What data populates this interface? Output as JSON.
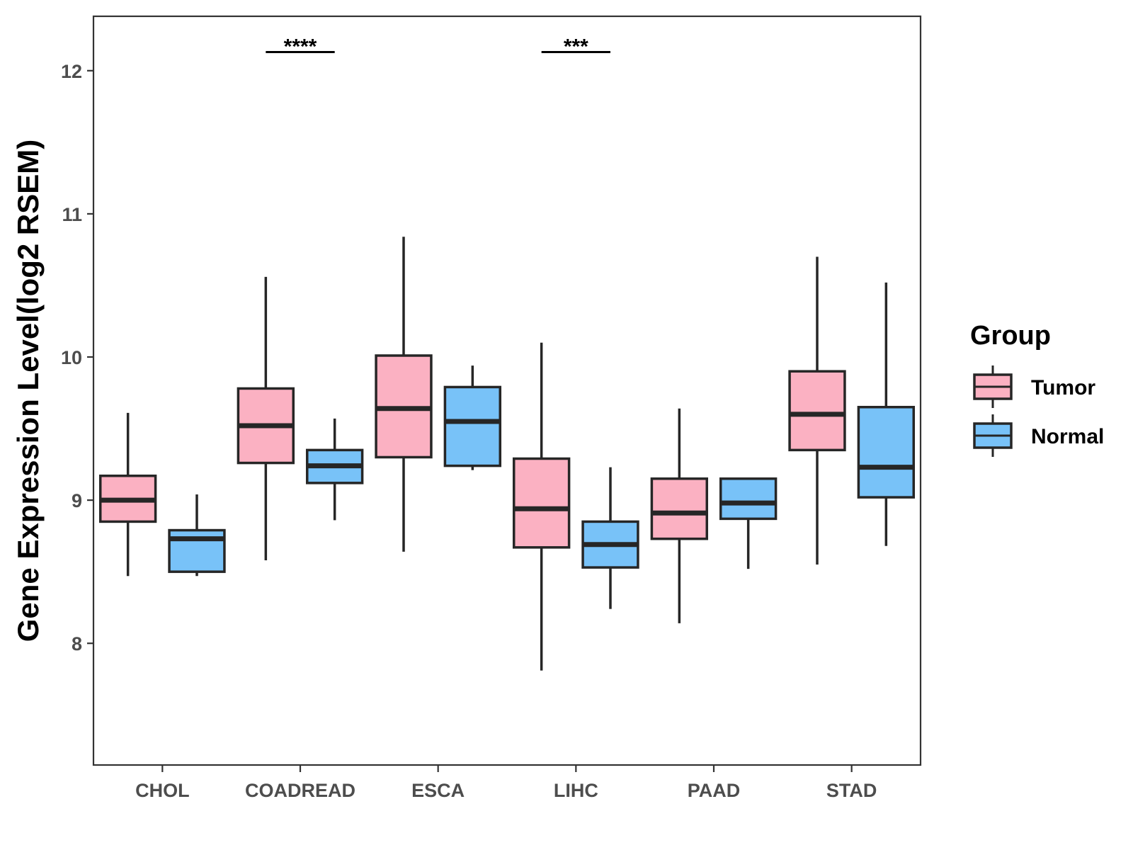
{
  "chart_data": {
    "type": "box",
    "title": "",
    "xlabel": "",
    "ylabel": "Gene Expression Level(log2 RSEM)",
    "ylim": [
      7.15,
      12.38
    ],
    "yticks": [
      "8",
      "9",
      "10",
      "11",
      "12"
    ],
    "grid": false,
    "legend_position": "right",
    "legend_title": "Group",
    "colors": {
      "Tumor": "#fbb1c2",
      "Normal": "#78c2f8",
      "outline": "#262626"
    },
    "categories": [
      "CHOL",
      "COADREAD",
      "ESCA",
      "LIHC",
      "PAAD",
      "STAD"
    ],
    "series": [
      {
        "name": "Tumor",
        "boxes": [
          {
            "whislo": 8.47,
            "q1": 8.85,
            "med": 9.0,
            "q3": 9.17,
            "whishi": 9.61
          },
          {
            "whislo": 8.58,
            "q1": 9.26,
            "med": 9.52,
            "q3": 9.78,
            "whishi": 10.56
          },
          {
            "whislo": 8.64,
            "q1": 9.3,
            "med": 9.64,
            "q3": 10.01,
            "whishi": 10.84
          },
          {
            "whislo": 7.81,
            "q1": 8.67,
            "med": 8.94,
            "q3": 9.29,
            "whishi": 10.1
          },
          {
            "whislo": 8.14,
            "q1": 8.73,
            "med": 8.91,
            "q3": 9.15,
            "whishi": 9.64
          },
          {
            "whislo": 8.55,
            "q1": 9.35,
            "med": 9.6,
            "q3": 9.9,
            "whishi": 10.7
          }
        ]
      },
      {
        "name": "Normal",
        "boxes": [
          {
            "whislo": 8.47,
            "q1": 8.5,
            "med": 8.73,
            "q3": 8.79,
            "whishi": 9.04
          },
          {
            "whislo": 8.86,
            "q1": 9.12,
            "med": 9.24,
            "q3": 9.35,
            "whishi": 9.57
          },
          {
            "whislo": 9.21,
            "q1": 9.24,
            "med": 9.55,
            "q3": 9.79,
            "whishi": 9.94
          },
          {
            "whislo": 8.24,
            "q1": 8.53,
            "med": 8.69,
            "q3": 8.85,
            "whishi": 9.23
          },
          {
            "whislo": 8.52,
            "q1": 8.87,
            "med": 8.98,
            "q3": 9.15,
            "whishi": 9.15
          },
          {
            "whislo": 8.68,
            "q1": 9.02,
            "med": 9.23,
            "q3": 9.65,
            "whishi": 10.52
          }
        ]
      }
    ],
    "annotations": [
      {
        "category": "COADREAD",
        "text": "****",
        "y": 12.13
      },
      {
        "category": "LIHC",
        "text": "***",
        "y": 12.13
      }
    ]
  }
}
